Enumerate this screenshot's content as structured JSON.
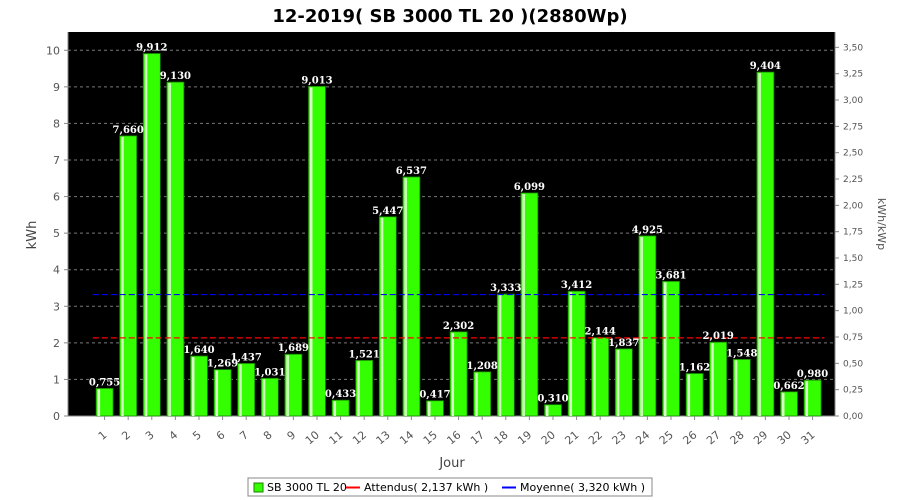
{
  "chart_data": {
    "type": "bar",
    "title": "12-2019( SB 3000 TL 20 )(2880Wp)",
    "xlabel": "Jour",
    "ylabel": "kWh",
    "y2label": "kWh/kWp",
    "categories": [
      "1",
      "2",
      "3",
      "4",
      "5",
      "6",
      "7",
      "8",
      "9",
      "10",
      "11",
      "12",
      "13",
      "14",
      "15",
      "16",
      "17",
      "18",
      "19",
      "20",
      "21",
      "22",
      "23",
      "24",
      "25",
      "26",
      "27",
      "28",
      "29",
      "30",
      "31"
    ],
    "series": [
      {
        "name": "SB 3000 TL 20",
        "color": "#33ff00",
        "values": [
          0.755,
          7.66,
          9.912,
          9.13,
          1.64,
          1.269,
          1.437,
          1.031,
          1.689,
          9.013,
          0.433,
          1.521,
          5.447,
          6.537,
          0.417,
          2.302,
          1.208,
          3.333,
          6.099,
          0.31,
          3.412,
          2.144,
          1.837,
          4.925,
          3.681,
          1.162,
          2.019,
          1.548,
          9.404,
          0.662,
          0.98
        ],
        "labels": [
          "0,755",
          "7,660",
          "9,912",
          "9,130",
          "1,640",
          "1,269",
          "1,437",
          "1,031",
          "1,689",
          "9,013",
          "0,433",
          "1,521",
          "5,447",
          "6,537",
          "0,417",
          "2,302",
          "1,208",
          "3,333",
          "6,099",
          "0,310",
          "3,412",
          "2,144",
          "1,837",
          "4,925",
          "3,681",
          "1,162",
          "2,019",
          "1,548",
          "9,404",
          "0,662",
          "0,980"
        ]
      }
    ],
    "reference_lines": [
      {
        "name": "Attendus( 2,137 kWh )",
        "value": 2.137,
        "color": "#ff0000",
        "style": "dashed"
      },
      {
        "name": "Moyenne( 3,320 kWh )",
        "value": 3.32,
        "color": "#0000ff",
        "style": "dashed"
      }
    ],
    "ylim": [
      0,
      10.5
    ],
    "yticks": [
      "0",
      "1",
      "2",
      "3",
      "4",
      "5",
      "6",
      "7",
      "8",
      "9",
      "10"
    ],
    "y2lim": [
      0,
      3.6458
    ],
    "y2ticks": [
      "0,00",
      "0,25",
      "0,50",
      "0,75",
      "1,00",
      "1,25",
      "1,50",
      "1,75",
      "2,00",
      "2,25",
      "2,50",
      "2,75",
      "3,00",
      "3,25",
      "3,50"
    ],
    "grid": true,
    "background": "#000000",
    "legend_position": "bottom-center",
    "legend": [
      "SB 3000 TL 20",
      "Attendus( 2,137 kWh )",
      "Moyenne( 3,320 kWh )"
    ]
  }
}
